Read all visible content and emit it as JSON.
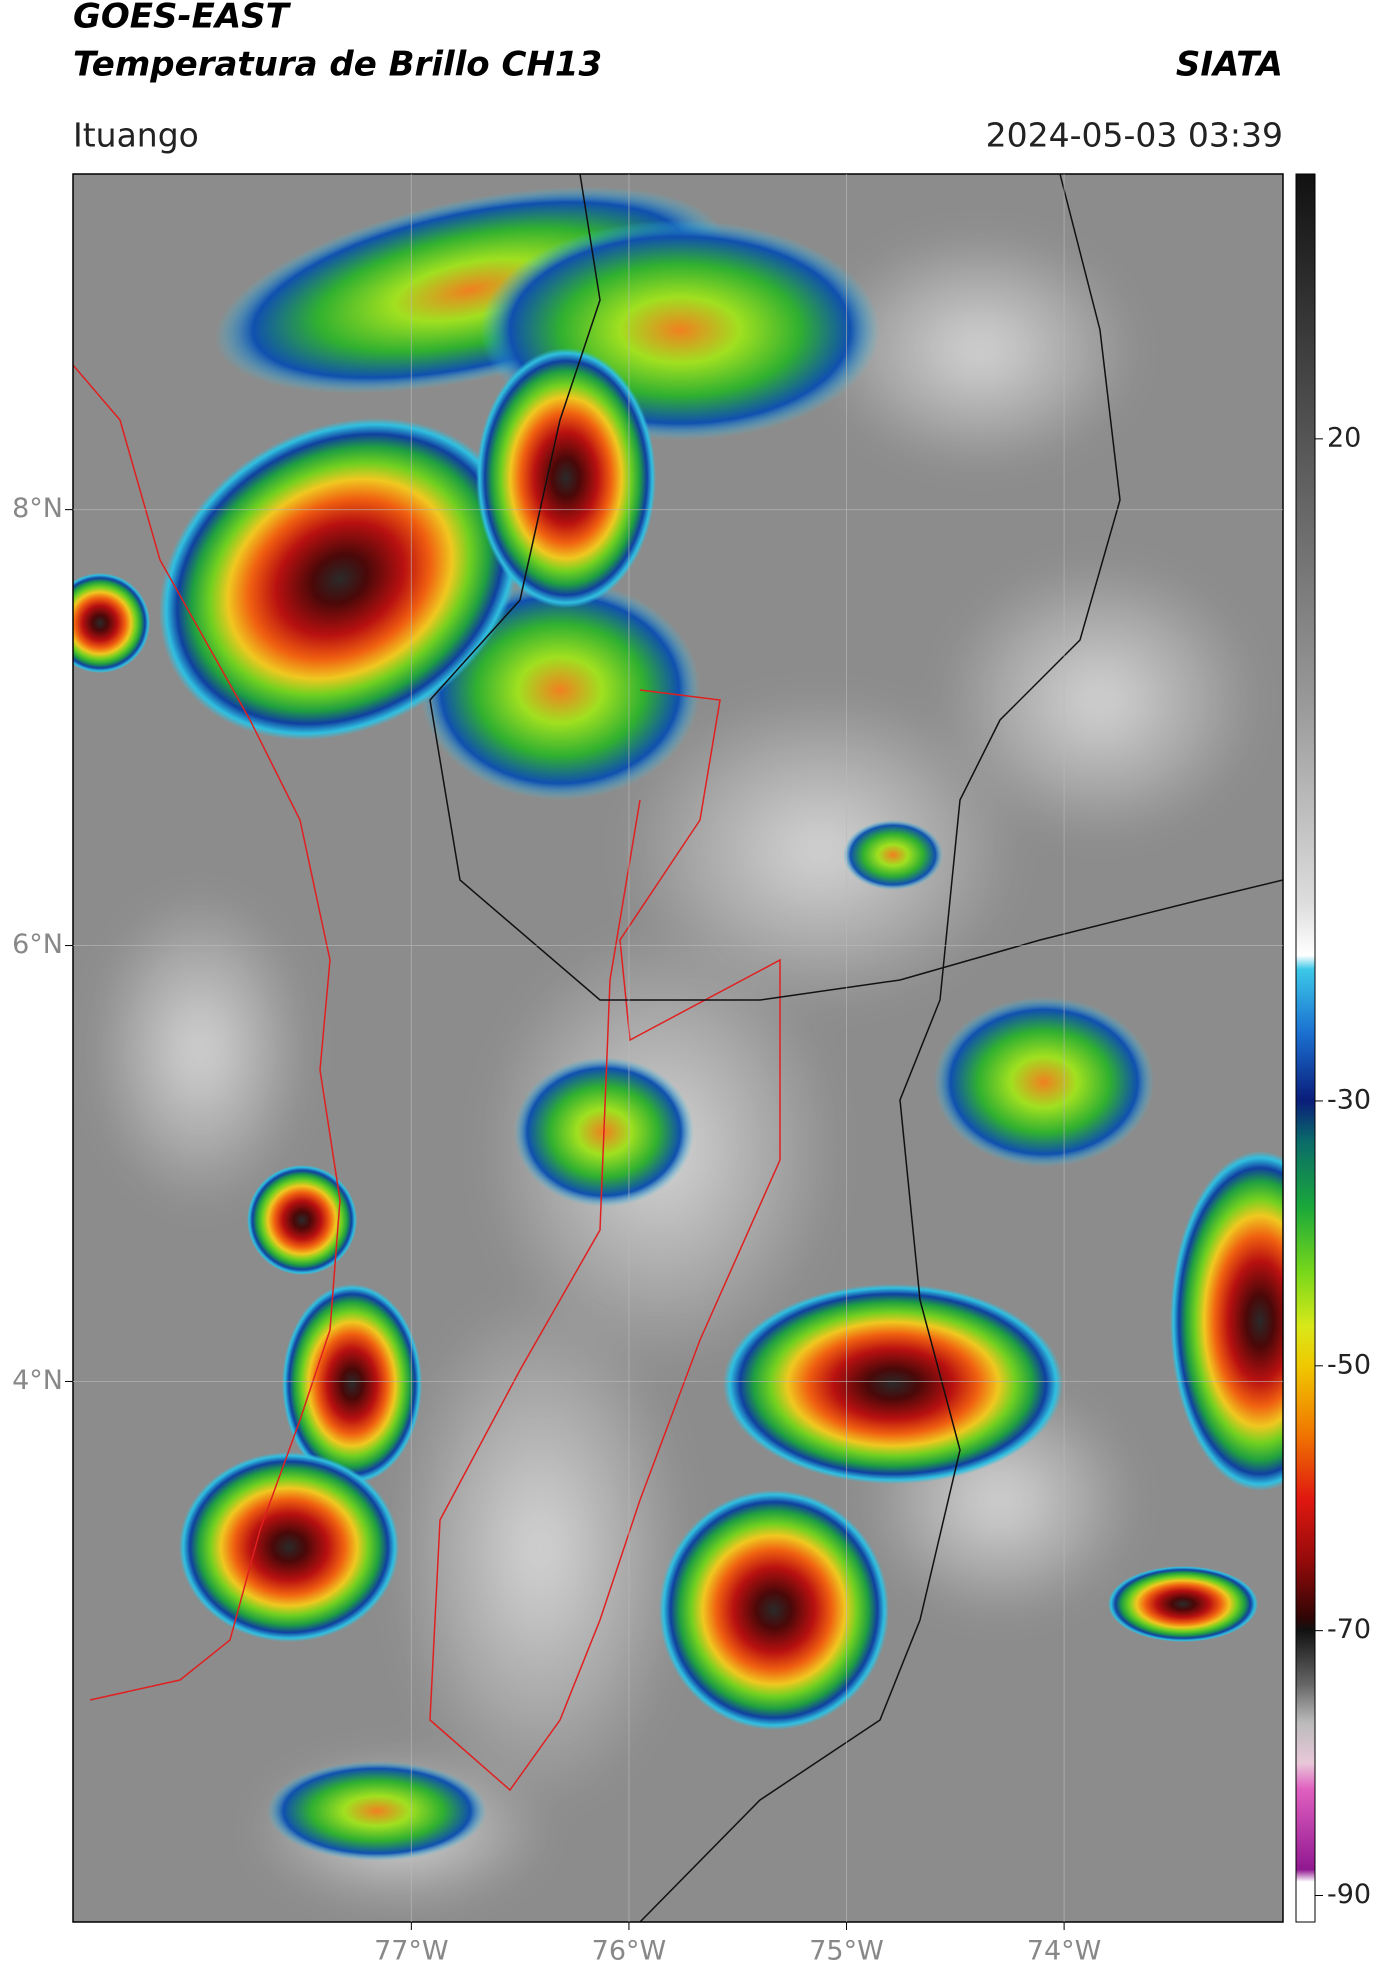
{
  "header": {
    "title": "GOES-EAST",
    "subtitle": "Temperatura de Brillo CH13",
    "source": "SIATA",
    "location": "Ituango",
    "datetime": "2024-05-03 03:39"
  },
  "map": {
    "xlim": [
      -78.555,
      -72.994
    ],
    "ylim": [
      1.52,
      9.54
    ],
    "xticks": [
      {
        "value": -77,
        "label": "77°W"
      },
      {
        "value": -76,
        "label": "76°W"
      },
      {
        "value": -75,
        "label": "75°W"
      },
      {
        "value": -74,
        "label": "74°W"
      }
    ],
    "yticks": [
      {
        "value": 8,
        "label": "8°N"
      },
      {
        "value": 6,
        "label": "6°N"
      },
      {
        "value": 4,
        "label": "4°N"
      }
    ],
    "grid": true
  },
  "colorbar": {
    "ylim": [
      -92,
      40
    ],
    "yticks": [
      20,
      -30,
      -50,
      -70,
      -90
    ]
  }
}
